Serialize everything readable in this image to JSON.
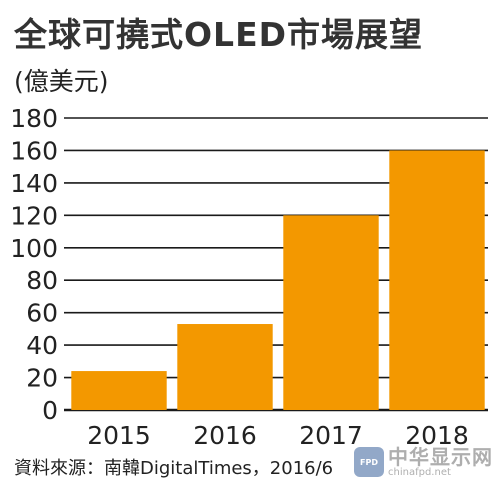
{
  "title": "全球可撓式OLED市場展望",
  "unit": "(億美元)",
  "source": "資料來源：南韓DigitalTimes，2016/6",
  "watermark": {
    "badge": "FPD",
    "name": "中华显示网",
    "url": "chinafpd.net"
  },
  "chart_data": {
    "type": "bar",
    "title": "全球可撓式OLED市場展望",
    "ylabel": "(億美元)",
    "xlabel": "",
    "categories": [
      "2015",
      "2016",
      "2017",
      "2018"
    ],
    "values": [
      24,
      53,
      120,
      160
    ],
    "ylim": [
      0,
      180
    ],
    "yticks": [
      0,
      20,
      40,
      60,
      80,
      100,
      120,
      140,
      160,
      180
    ],
    "grid": true,
    "bar_color": "#f39800",
    "grid_color": "#1a1a1a"
  }
}
